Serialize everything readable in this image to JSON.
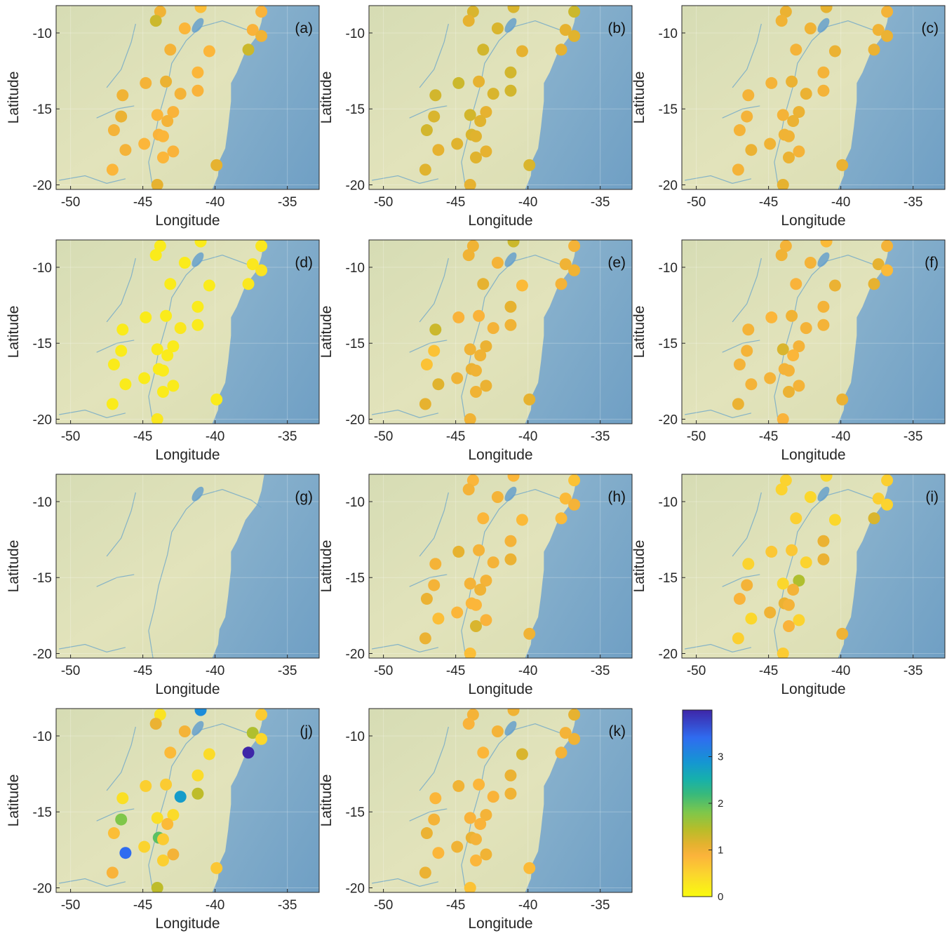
{
  "chart_data": {
    "type": "scatter",
    "xlabel": "Longitude",
    "ylabel": "Latitude",
    "xlim": [
      -51,
      -32.8
    ],
    "ylim": [
      -20.3,
      -8.2
    ],
    "xticks": [
      -50,
      -45,
      -40,
      -35
    ],
    "yticks": [
      -10,
      -15,
      -20
    ],
    "colorbar": {
      "min": 0,
      "max": 4,
      "ticks": [
        0,
        1,
        2,
        3
      ],
      "colormap": "parula-reversed"
    },
    "stations": [
      {
        "lon": -43.8,
        "lat": -8.6
      },
      {
        "lon": -44.1,
        "lat": -9.2
      },
      {
        "lon": -41.0,
        "lat": -8.3
      },
      {
        "lon": -36.8,
        "lat": -8.6
      },
      {
        "lon": -42.1,
        "lat": -9.7
      },
      {
        "lon": -37.4,
        "lat": -9.8
      },
      {
        "lon": -36.8,
        "lat": -10.2
      },
      {
        "lon": -43.1,
        "lat": -11.1
      },
      {
        "lon": -40.4,
        "lat": -11.2
      },
      {
        "lon": -37.7,
        "lat": -11.1
      },
      {
        "lon": -41.2,
        "lat": -12.6
      },
      {
        "lon": -44.8,
        "lat": -13.3
      },
      {
        "lon": -43.4,
        "lat": -13.2
      },
      {
        "lon": -41.2,
        "lat": -13.8
      },
      {
        "lon": -46.4,
        "lat": -14.1
      },
      {
        "lon": -42.4,
        "lat": -14.0
      },
      {
        "lon": -46.5,
        "lat": -15.5
      },
      {
        "lon": -44.0,
        "lat": -15.4
      },
      {
        "lon": -42.9,
        "lat": -15.2
      },
      {
        "lon": -43.3,
        "lat": -15.8
      },
      {
        "lon": -47.0,
        "lat": -16.4
      },
      {
        "lon": -43.9,
        "lat": -16.7
      },
      {
        "lon": -43.6,
        "lat": -16.8
      },
      {
        "lon": -46.2,
        "lat": -17.7
      },
      {
        "lon": -44.9,
        "lat": -17.3
      },
      {
        "lon": -42.9,
        "lat": -17.8
      },
      {
        "lon": -43.6,
        "lat": -18.2
      },
      {
        "lon": -47.1,
        "lat": -19.0
      },
      {
        "lon": -39.9,
        "lat": -18.7
      },
      {
        "lon": -44.0,
        "lat": -20.0
      }
    ],
    "panels": [
      {
        "label": "(a)",
        "values": [
          1.0,
          1.3,
          0.75,
          0.9,
          0.85,
          0.9,
          1.0,
          0.95,
          0.85,
          1.3,
          0.85,
          0.95,
          1.05,
          0.9,
          1.0,
          0.95,
          1.05,
          0.85,
          0.9,
          0.95,
          0.95,
          0.9,
          0.85,
          0.95,
          0.85,
          0.9,
          0.85,
          0.85,
          1.1,
          1.1
        ]
      },
      {
        "label": "(b)",
        "values": [
          1.2,
          1.1,
          1.2,
          1.3,
          1.2,
          1.1,
          1.15,
          1.25,
          1.1,
          1.1,
          1.25,
          1.3,
          1.1,
          1.25,
          1.25,
          1.2,
          1.2,
          1.25,
          1.1,
          1.15,
          1.25,
          1.2,
          1.15,
          1.1,
          1.15,
          1.1,
          1.15,
          1.15,
          1.2,
          1.1
        ]
      },
      {
        "label": "(c)",
        "values": [
          1.05,
          1.0,
          1.1,
          0.95,
          1.0,
          1.0,
          1.05,
          0.95,
          1.05,
          1.05,
          0.95,
          0.95,
          1.05,
          0.95,
          0.95,
          1.05,
          0.95,
          0.95,
          1.05,
          1.05,
          0.95,
          1.0,
          1.0,
          1.05,
          1.0,
          0.95,
          1.05,
          0.95,
          1.05,
          1.1
        ]
      },
      {
        "label": "(d)",
        "values": [
          0.2,
          0.2,
          0.2,
          0.25,
          0.2,
          0.25,
          0.3,
          0.2,
          0.2,
          0.25,
          0.2,
          0.2,
          0.2,
          0.2,
          0.2,
          0.25,
          0.2,
          0.2,
          0.2,
          0.2,
          0.2,
          0.2,
          0.2,
          0.2,
          0.2,
          0.2,
          0.2,
          0.2,
          0.2,
          0.25
        ]
      },
      {
        "label": "(e)",
        "values": [
          1.0,
          1.0,
          1.3,
          0.95,
          0.95,
          1.0,
          1.0,
          1.1,
          0.8,
          0.95,
          1.1,
          0.9,
          0.9,
          1.0,
          1.3,
          0.95,
          0.7,
          1.0,
          1.05,
          1.0,
          0.7,
          1.05,
          1.0,
          1.15,
          1.0,
          1.05,
          1.0,
          1.1,
          1.1,
          1.0
        ]
      },
      {
        "label": "(f)",
        "values": [
          0.95,
          1.0,
          0.8,
          0.95,
          0.95,
          1.1,
          0.8,
          0.9,
          1.05,
          1.1,
          0.95,
          0.85,
          1.0,
          0.95,
          0.95,
          0.95,
          0.95,
          1.2,
          0.95,
          0.85,
          0.95,
          0.95,
          0.95,
          0.95,
          0.95,
          0.95,
          1.05,
          1.05,
          1.05,
          0.9
        ]
      },
      {
        "label": "(g)",
        "values": []
      },
      {
        "label": "(h)",
        "values": [
          0.85,
          0.95,
          0.85,
          0.7,
          0.95,
          0.8,
          0.95,
          0.85,
          0.8,
          0.8,
          0.95,
          1.1,
          0.95,
          1.05,
          0.95,
          0.95,
          0.95,
          0.95,
          0.95,
          1.0,
          1.05,
          0.85,
          0.85,
          0.75,
          0.85,
          0.9,
          1.2,
          1.05,
          1.0,
          0.75
        ]
      },
      {
        "label": "(i)",
        "values": [
          0.5,
          0.5,
          0.45,
          0.55,
          0.45,
          0.55,
          0.5,
          0.55,
          0.45,
          1.2,
          1.05,
          0.65,
          0.65,
          1.05,
          0.5,
          0.5,
          0.95,
          0.45,
          1.5,
          0.95,
          0.9,
          1.05,
          0.95,
          0.45,
          1.0,
          0.5,
          0.9,
          0.55,
          1.0,
          0.6
        ]
      },
      {
        "label": "(j)",
        "values": [
          0.3,
          1.05,
          3.0,
          0.6,
          0.95,
          1.5,
          0.45,
          0.8,
          0.4,
          4.0,
          0.4,
          0.55,
          0.6,
          1.4,
          0.35,
          2.8,
          1.8,
          0.35,
          0.4,
          0.8,
          0.75,
          2.0,
          0.6,
          3.4,
          0.5,
          0.95,
          0.55,
          0.9,
          0.65,
          1.4
        ]
      },
      {
        "label": "(k)",
        "values": [
          0.95,
          0.9,
          1.0,
          1.1,
          0.95,
          0.95,
          1.0,
          0.85,
          1.2,
          0.95,
          1.05,
          1.0,
          0.85,
          1.0,
          0.85,
          0.9,
          0.95,
          0.9,
          0.95,
          0.9,
          1.05,
          1.05,
          0.95,
          0.85,
          1.0,
          1.0,
          0.85,
          1.05,
          0.8,
          0.7
        ]
      }
    ]
  }
}
